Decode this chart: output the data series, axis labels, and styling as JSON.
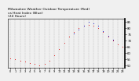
{
  "title_line1": "Milwaukee Weather Outdoor Temperature (Red)",
  "title_line2": "vs Heat Index (Blue)",
  "title_line3": "(24 Hours)",
  "title_fontsize": 3.2,
  "background_color": "#f0f0f0",
  "plot_bg": "#f0f0f0",
  "border_color": "#000000",
  "grid_color": "#888888",
  "hours": [
    0,
    1,
    2,
    3,
    4,
    5,
    6,
    7,
    8,
    9,
    10,
    11,
    12,
    13,
    14,
    15,
    16,
    17,
    18,
    19,
    20,
    21,
    22,
    23
  ],
  "temp_red": [
    56,
    55,
    54,
    53,
    52,
    51,
    50,
    51,
    54,
    58,
    63,
    68,
    73,
    77,
    80,
    82,
    83,
    82,
    80,
    77,
    73,
    70,
    67,
    65
  ],
  "heat_blue": [
    null,
    null,
    null,
    null,
    null,
    null,
    null,
    null,
    null,
    null,
    null,
    null,
    null,
    76,
    79,
    82,
    85,
    84,
    82,
    78,
    74,
    71,
    null,
    null
  ],
  "ylim": [
    48,
    88
  ],
  "yticks": [
    50,
    55,
    60,
    65,
    70,
    75,
    80,
    85
  ],
  "ytick_fontsize": 2.8,
  "xtick_fontsize": 2.5,
  "red_color": "#dd0000",
  "blue_color": "#0000cc",
  "marker_size": 1.5,
  "dot_marker": "."
}
